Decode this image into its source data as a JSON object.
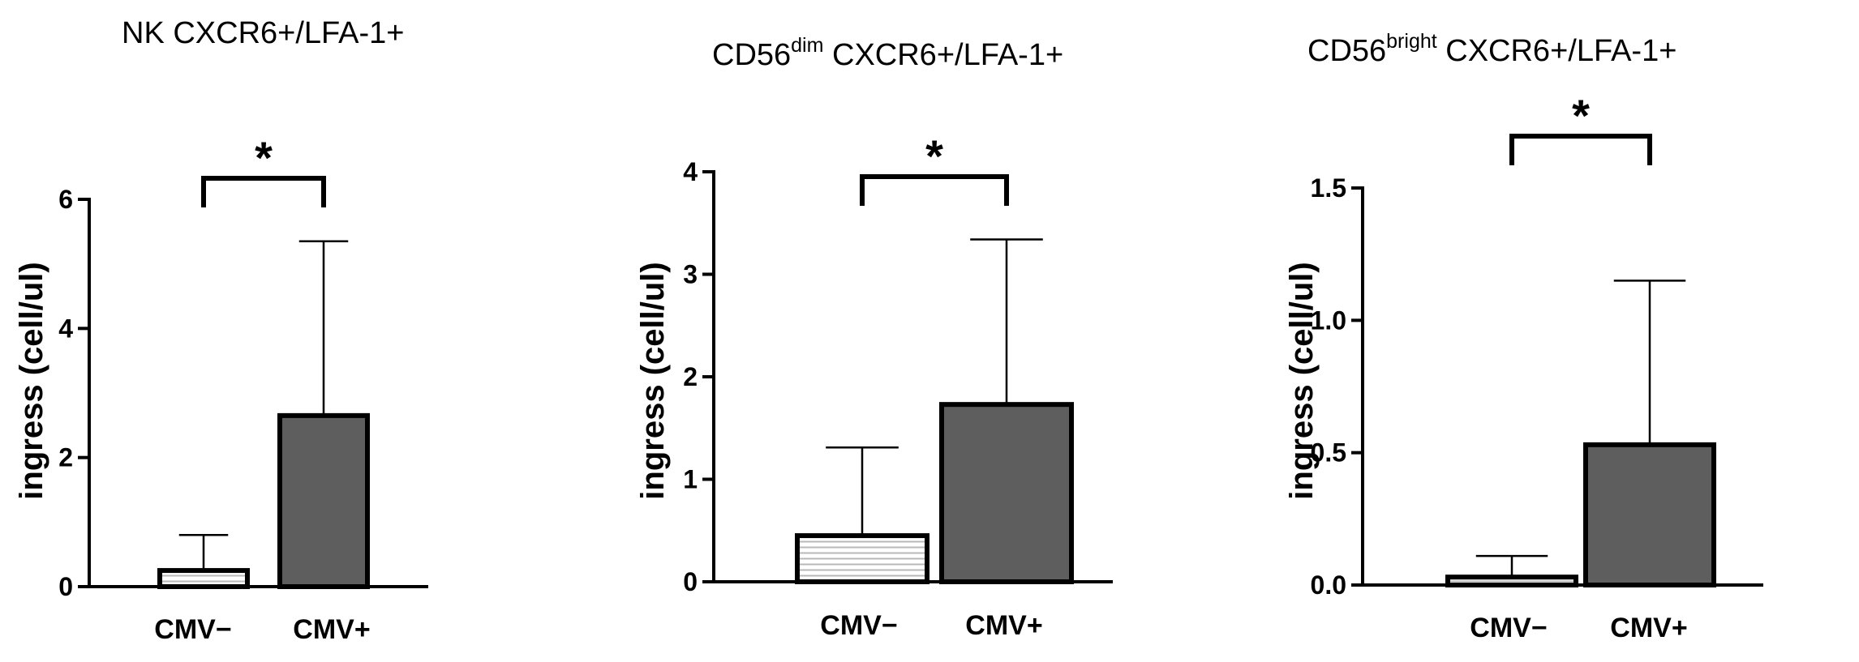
{
  "chart_data": [
    {
      "type": "bar",
      "title": "NK CXCR6+/LFA-1+",
      "title_base": "",
      "title_sup": "",
      "title_rest": "",
      "ylabel": "ingress (cell/ul)",
      "categories": [
        "CMV−",
        "CMV+"
      ],
      "values": [
        0.25,
        2.65
      ],
      "error_upper": [
        0.8,
        5.35
      ],
      "ylim": [
        0,
        6
      ],
      "yticks": [
        0,
        2,
        4,
        6
      ],
      "ytick_labels": [
        "0",
        "2",
        "4",
        "6"
      ],
      "bar_fill": [
        "pattern:horizontal-lines",
        "#5e5e5e"
      ],
      "significance": {
        "between": [
          0,
          1
        ],
        "label": "*"
      }
    },
    {
      "type": "bar",
      "title": "",
      "title_base": "CD56",
      "title_sup": "dim",
      "title_rest": " CXCR6+/LFA-1+",
      "ylabel": "ingress (cell/ul)",
      "categories": [
        "CMV−",
        "CMV+"
      ],
      "values": [
        0.45,
        1.73
      ],
      "error_upper": [
        1.31,
        3.34
      ],
      "ylim": [
        0,
        4
      ],
      "yticks": [
        0,
        1,
        2,
        3,
        4
      ],
      "ytick_labels": [
        "0",
        "1",
        "2",
        "3",
        "4"
      ],
      "bar_fill": [
        "pattern:horizontal-lines",
        "#5e5e5e"
      ],
      "significance": {
        "between": [
          0,
          1
        ],
        "label": "*"
      }
    },
    {
      "type": "bar",
      "title": "",
      "title_base": "CD56",
      "title_sup": "bright",
      "title_rest": " CXCR6+/LFA-1+",
      "ylabel": "ingress (cell/ul)",
      "categories": [
        "CMV−",
        "CMV+"
      ],
      "values": [
        0.03,
        0.53
      ],
      "error_upper": [
        0.11,
        1.15
      ],
      "ylim": [
        0,
        1.5
      ],
      "yticks": [
        0,
        0.5,
        1.0,
        1.5
      ],
      "ytick_labels": [
        "0.0",
        "0.5",
        "1.0",
        "1.5"
      ],
      "bar_fill": [
        "pattern:horizontal-lines",
        "#5e5e5e"
      ],
      "significance": {
        "between": [
          0,
          1
        ],
        "label": "*"
      }
    }
  ]
}
